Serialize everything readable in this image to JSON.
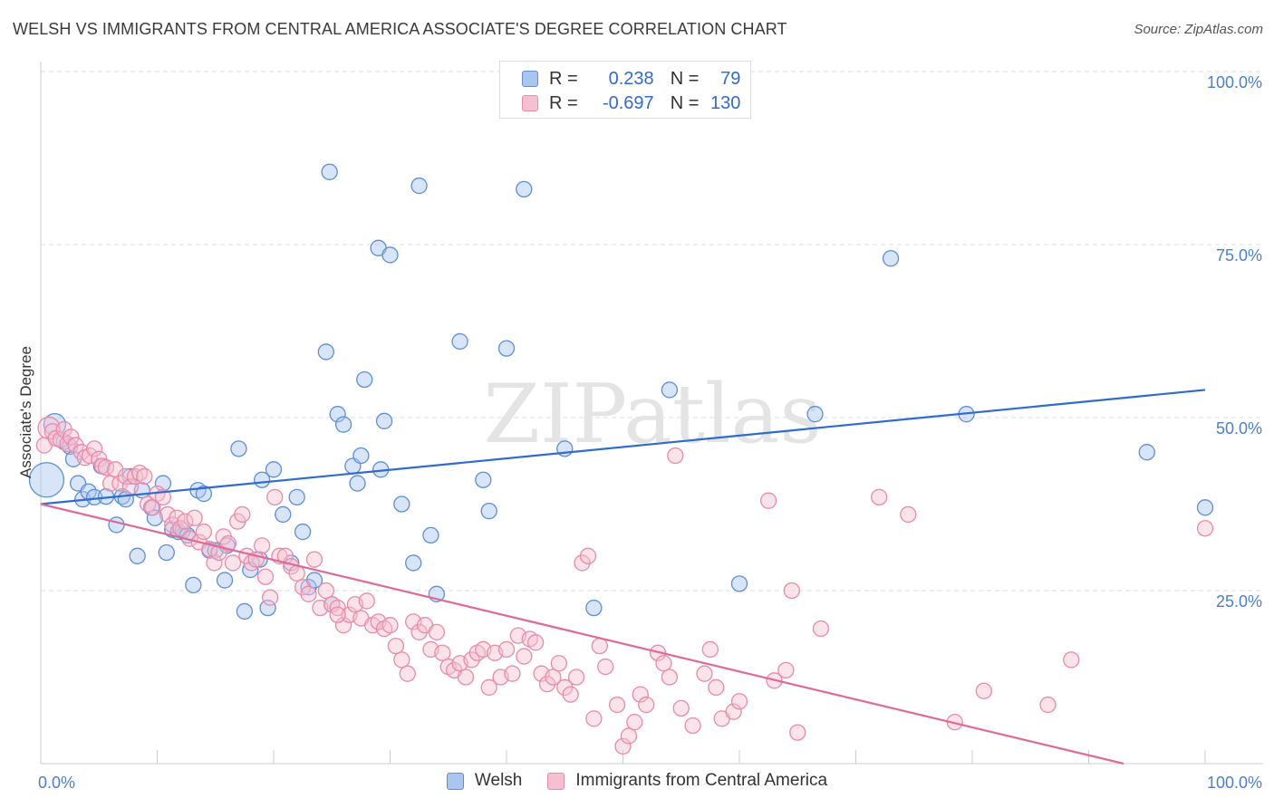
{
  "title": "WELSH VS IMMIGRANTS FROM CENTRAL AMERICA ASSOCIATE'S DEGREE CORRELATION CHART",
  "source": "Source: ZipAtlas.com",
  "watermark": "ZIPatlas",
  "legend": {
    "welsh": {
      "r_label": "R =",
      "r_value": "0.238",
      "n_label": "N =",
      "n_value": "79"
    },
    "immigrants": {
      "r_label": "R =",
      "r_value": "-0.697",
      "n_label": "N =",
      "n_value": "130"
    }
  },
  "bottom_legend": {
    "welsh": "Welsh",
    "immigrants": "Immigrants from Central America"
  },
  "colors": {
    "welsh_fill": "#a9c6f0",
    "welsh_stroke": "#5b8fd8",
    "welsh_line": "#2f6bd0",
    "immigrants_fill": "#f7c0d0",
    "immigrants_stroke": "#e98aa8",
    "immigrants_line": "#e06a94",
    "axis_text": "#4a7fd1",
    "grid": "#dddddd"
  },
  "chart_data": {
    "type": "scatter",
    "title": "WELSH VS IMMIGRANTS FROM CENTRAL AMERICA ASSOCIATE'S DEGREE CORRELATION CHART",
    "xlabel": "",
    "ylabel": "Associate's Degree",
    "xlim": [
      0,
      100
    ],
    "ylim": [
      0,
      100
    ],
    "x_tick_labels": [
      "0.0%",
      "100.0%"
    ],
    "y_ticks": [
      25,
      50,
      75,
      100
    ],
    "y_tick_labels": [
      "25.0%",
      "50.0%",
      "75.0%",
      "100.0%"
    ],
    "grid": true,
    "legend_placement": "top-center",
    "series": [
      {
        "name": "Welsh",
        "trend": {
          "x": [
            0,
            100
          ],
          "y": [
            37.5,
            54.0
          ]
        },
        "points": [
          [
            0.5,
            41.0,
            3
          ],
          [
            1.2,
            49.0,
            2
          ],
          [
            2.0,
            46.5,
            1
          ],
          [
            2.5,
            45.8,
            1
          ],
          [
            2.8,
            44.0,
            1
          ],
          [
            3.2,
            40.5,
            1
          ],
          [
            3.6,
            38.2,
            1
          ],
          [
            4.1,
            39.3,
            1
          ],
          [
            4.6,
            38.5,
            1
          ],
          [
            5.2,
            43.0,
            1
          ],
          [
            5.6,
            38.6,
            1
          ],
          [
            6.5,
            34.5,
            1
          ],
          [
            7.0,
            38.6,
            1
          ],
          [
            7.3,
            38.2,
            1
          ],
          [
            7.7,
            41.5,
            1
          ],
          [
            8.3,
            30.0,
            1
          ],
          [
            8.7,
            39.5,
            1
          ],
          [
            9.5,
            37.0,
            1
          ],
          [
            9.8,
            35.5,
            1
          ],
          [
            10.5,
            40.5,
            1
          ],
          [
            10.8,
            30.5,
            1
          ],
          [
            11.3,
            33.8,
            1
          ],
          [
            11.8,
            33.5,
            1
          ],
          [
            12.2,
            33.7,
            1
          ],
          [
            12.6,
            33.0,
            1
          ],
          [
            13.1,
            25.8,
            1
          ],
          [
            13.5,
            39.5,
            1
          ],
          [
            14.0,
            39.0,
            1
          ],
          [
            14.5,
            30.8,
            1
          ],
          [
            15.0,
            30.8,
            1
          ],
          [
            15.8,
            26.5,
            1
          ],
          [
            16.0,
            31.5,
            1
          ],
          [
            17.0,
            45.5,
            1
          ],
          [
            17.5,
            22.0,
            1
          ],
          [
            18.0,
            28.0,
            1
          ],
          [
            18.8,
            29.5,
            1
          ],
          [
            19.0,
            41.0,
            1
          ],
          [
            19.5,
            22.5,
            1
          ],
          [
            20.0,
            42.5,
            1
          ],
          [
            20.8,
            36.0,
            1
          ],
          [
            21.5,
            29.0,
            1
          ],
          [
            22.0,
            38.5,
            1
          ],
          [
            22.5,
            33.5,
            1
          ],
          [
            23.0,
            25.5,
            1
          ],
          [
            23.5,
            26.5,
            1
          ],
          [
            24.5,
            59.5,
            1
          ],
          [
            24.8,
            85.5,
            1
          ],
          [
            25.0,
            23.0,
            1
          ],
          [
            25.5,
            50.5,
            1
          ],
          [
            26.0,
            49.0,
            1
          ],
          [
            26.8,
            43.0,
            1
          ],
          [
            27.2,
            40.5,
            1
          ],
          [
            27.8,
            55.5,
            1
          ],
          [
            27.5,
            44.5,
            1
          ],
          [
            29.0,
            74.5,
            1
          ],
          [
            29.2,
            42.5,
            1
          ],
          [
            29.5,
            49.5,
            1
          ],
          [
            30.0,
            73.5,
            1
          ],
          [
            31.0,
            37.5,
            1
          ],
          [
            32.0,
            29.0,
            1
          ],
          [
            32.5,
            83.5,
            1
          ],
          [
            33.5,
            33.0,
            1
          ],
          [
            34.0,
            24.5,
            1
          ],
          [
            36.0,
            61.0,
            1
          ],
          [
            38.0,
            41.0,
            1
          ],
          [
            38.5,
            36.5,
            1
          ],
          [
            40.0,
            60.0,
            1
          ],
          [
            41.5,
            83.0,
            1
          ],
          [
            45.0,
            45.5,
            1
          ],
          [
            47.5,
            22.5,
            1
          ],
          [
            54.0,
            54.0,
            1
          ],
          [
            60.0,
            26.0,
            1
          ],
          [
            66.5,
            50.5,
            1
          ],
          [
            73.0,
            73.0,
            1
          ],
          [
            79.5,
            50.5,
            1
          ],
          [
            95.0,
            45.0,
            1
          ],
          [
            100.0,
            37.0,
            1
          ]
        ]
      },
      {
        "name": "Immigrants from Central America",
        "trend": {
          "x": [
            0,
            93
          ],
          "y": [
            37.5,
            0
          ]
        },
        "points": [
          [
            0.3,
            46.0,
            1
          ],
          [
            0.7,
            48.5,
            2
          ],
          [
            1.0,
            48.0,
            1
          ],
          [
            1.3,
            47.0,
            1
          ],
          [
            1.7,
            46.8,
            1
          ],
          [
            2.0,
            48.3,
            1
          ],
          [
            2.3,
            46.2,
            1
          ],
          [
            2.6,
            47.2,
            1
          ],
          [
            3.0,
            46.0,
            1
          ],
          [
            3.5,
            45.0,
            1
          ],
          [
            3.8,
            44.2,
            1
          ],
          [
            4.2,
            44.5,
            1
          ],
          [
            4.6,
            45.5,
            1
          ],
          [
            5.0,
            44.0,
            1
          ],
          [
            5.3,
            43.0,
            1
          ],
          [
            5.6,
            42.8,
            1
          ],
          [
            6.0,
            40.5,
            1
          ],
          [
            6.4,
            42.5,
            1
          ],
          [
            6.8,
            40.5,
            1
          ],
          [
            7.3,
            41.5,
            1
          ],
          [
            7.7,
            40.0,
            1
          ],
          [
            8.1,
            41.5,
            1
          ],
          [
            8.5,
            42.0,
            1
          ],
          [
            8.9,
            41.5,
            1
          ],
          [
            9.2,
            37.5,
            1
          ],
          [
            9.6,
            37.0,
            1
          ],
          [
            10.0,
            39.0,
            1
          ],
          [
            10.5,
            38.5,
            1
          ],
          [
            10.9,
            36.0,
            1
          ],
          [
            11.3,
            34.5,
            1
          ],
          [
            11.7,
            35.5,
            1
          ],
          [
            12.0,
            34.0,
            1
          ],
          [
            12.4,
            35.0,
            1
          ],
          [
            12.8,
            32.5,
            1
          ],
          [
            13.2,
            35.5,
            1
          ],
          [
            13.6,
            32.0,
            1
          ],
          [
            14.0,
            33.5,
            1
          ],
          [
            14.5,
            31.0,
            1
          ],
          [
            14.9,
            29.0,
            1
          ],
          [
            15.3,
            30.5,
            1
          ],
          [
            15.7,
            32.8,
            1
          ],
          [
            16.1,
            31.8,
            1
          ],
          [
            16.5,
            29.0,
            1
          ],
          [
            16.9,
            35.0,
            1
          ],
          [
            17.3,
            36.0,
            1
          ],
          [
            17.7,
            30.0,
            1
          ],
          [
            18.1,
            29.0,
            1
          ],
          [
            18.5,
            29.5,
            1
          ],
          [
            19.0,
            31.5,
            1
          ],
          [
            19.3,
            27.0,
            1
          ],
          [
            19.7,
            24.0,
            1
          ],
          [
            20.1,
            38.5,
            1
          ],
          [
            20.5,
            30.0,
            1
          ],
          [
            21.0,
            30.0,
            1
          ],
          [
            21.5,
            28.5,
            1
          ],
          [
            22.0,
            27.5,
            1
          ],
          [
            22.5,
            25.5,
            1
          ],
          [
            23.0,
            24.5,
            1
          ],
          [
            23.5,
            29.5,
            1
          ],
          [
            24.0,
            22.5,
            1
          ],
          [
            24.5,
            25.0,
            1
          ],
          [
            25.0,
            23.0,
            1
          ],
          [
            25.5,
            22.5,
            1
          ],
          [
            26.0,
            20.0,
            1
          ],
          [
            26.5,
            21.5,
            1
          ],
          [
            27.0,
            23.0,
            1
          ],
          [
            27.5,
            21.0,
            1
          ],
          [
            28.0,
            23.5,
            1
          ],
          [
            28.5,
            20.0,
            1
          ],
          [
            29.0,
            20.5,
            1
          ],
          [
            29.5,
            19.5,
            1
          ],
          [
            30.0,
            20.0,
            1
          ],
          [
            30.5,
            17.0,
            1
          ],
          [
            31.0,
            15.0,
            1
          ],
          [
            31.5,
            13.0,
            1
          ],
          [
            32.0,
            20.5,
            1
          ],
          [
            32.5,
            19.0,
            1
          ],
          [
            33.0,
            20.0,
            1
          ],
          [
            33.5,
            16.5,
            1
          ],
          [
            34.0,
            19.0,
            1
          ],
          [
            34.5,
            16.0,
            1
          ],
          [
            35.0,
            14.0,
            1
          ],
          [
            35.5,
            13.5,
            1
          ],
          [
            36.0,
            14.5,
            1
          ],
          [
            36.5,
            12.5,
            1
          ],
          [
            37.0,
            15.0,
            1
          ],
          [
            37.5,
            16.0,
            1
          ],
          [
            38.0,
            16.5,
            1
          ],
          [
            38.5,
            11.0,
            1
          ],
          [
            39.0,
            16.0,
            1
          ],
          [
            39.5,
            12.5,
            1
          ],
          [
            40.0,
            16.5,
            1
          ],
          [
            40.5,
            13.0,
            1
          ],
          [
            41.0,
            18.5,
            1
          ],
          [
            41.5,
            15.5,
            1
          ],
          [
            42.0,
            18.0,
            1
          ],
          [
            42.5,
            17.5,
            1
          ],
          [
            43.0,
            13.0,
            1
          ],
          [
            43.5,
            11.5,
            1
          ],
          [
            44.0,
            12.5,
            1
          ],
          [
            44.5,
            14.5,
            1
          ],
          [
            45.0,
            11.0,
            1
          ],
          [
            45.5,
            10.0,
            1
          ],
          [
            46.0,
            12.5,
            1
          ],
          [
            46.5,
            29.0,
            1
          ],
          [
            47.0,
            30.0,
            1
          ],
          [
            47.5,
            6.5,
            1
          ],
          [
            48.0,
            17.0,
            1
          ],
          [
            48.5,
            14.0,
            1
          ],
          [
            49.5,
            8.5,
            1
          ],
          [
            50.0,
            2.5,
            1
          ],
          [
            50.5,
            4.0,
            1
          ],
          [
            51.0,
            6.0,
            1
          ],
          [
            51.5,
            10.0,
            1
          ],
          [
            52.0,
            8.5,
            1
          ],
          [
            53.0,
            16.0,
            1
          ],
          [
            53.5,
            14.5,
            1
          ],
          [
            54.0,
            12.5,
            1
          ],
          [
            55.0,
            8.0,
            1
          ],
          [
            56.0,
            5.5,
            1
          ],
          [
            57.0,
            13.0,
            1
          ],
          [
            57.5,
            16.5,
            1
          ],
          [
            58.0,
            11.0,
            1
          ],
          [
            58.5,
            6.5,
            1
          ],
          [
            59.5,
            7.5,
            1
          ],
          [
            60.0,
            9.0,
            1
          ],
          [
            62.5,
            38.0,
            1
          ],
          [
            63.0,
            12.0,
            1
          ],
          [
            64.0,
            13.5,
            1
          ],
          [
            64.5,
            25.0,
            1
          ],
          [
            65.0,
            4.5,
            1
          ],
          [
            67.0,
            19.5,
            1
          ],
          [
            72.0,
            38.5,
            1
          ],
          [
            74.5,
            36.0,
            1
          ],
          [
            78.5,
            6.0,
            1
          ],
          [
            81.0,
            10.5,
            1
          ],
          [
            86.5,
            8.5,
            1
          ],
          [
            88.5,
            15.0,
            1
          ],
          [
            54.5,
            44.5,
            1
          ],
          [
            25.5,
            21.5,
            1
          ],
          [
            100.0,
            34.0,
            1
          ]
        ]
      }
    ]
  }
}
